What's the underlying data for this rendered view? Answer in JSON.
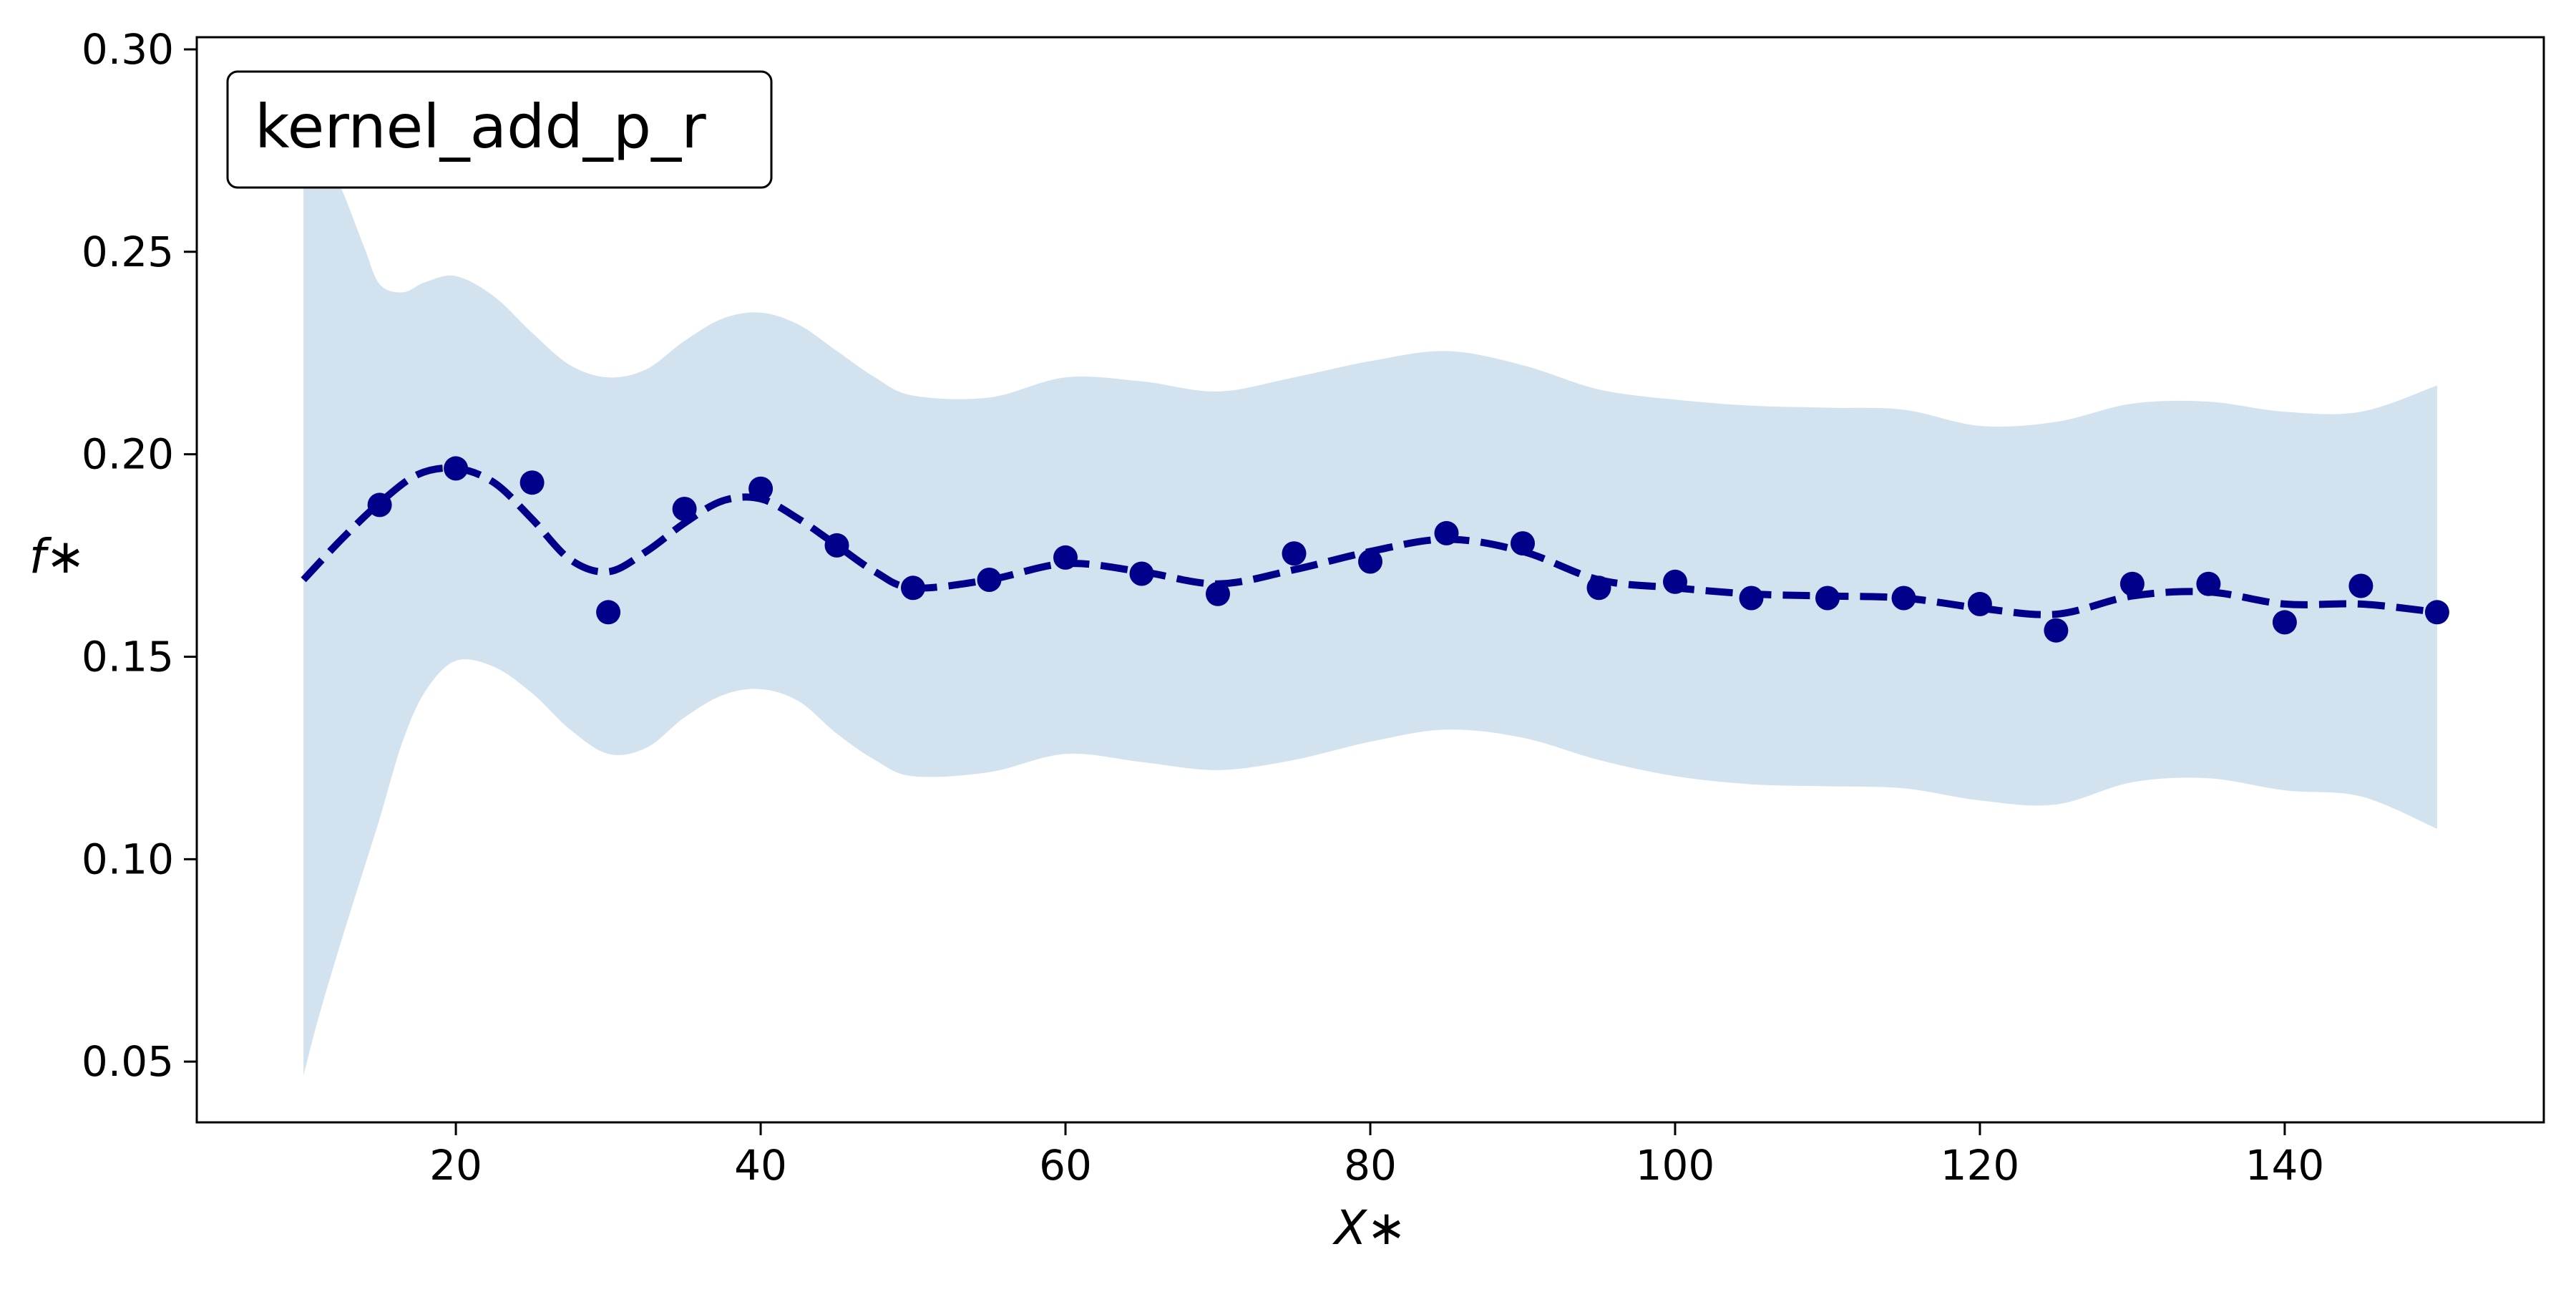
{
  "chart_data": {
    "type": "line",
    "title": "",
    "legend": {
      "label": "kernel_add_p_r",
      "placement": "top-left"
    },
    "xlabel": "X∗",
    "ylabel": "f∗",
    "xlim": [
      3,
      157
    ],
    "ylim": [
      0.035,
      0.303
    ],
    "xticks": [
      20,
      40,
      60,
      80,
      100,
      120,
      140
    ],
    "xtick_labels": [
      "20",
      "40",
      "60",
      "80",
      "100",
      "120",
      "140"
    ],
    "yticks": [
      0.05,
      0.1,
      0.15,
      0.2,
      0.25,
      0.3
    ],
    "ytick_labels": [
      "0.05",
      "0.10",
      "0.15",
      "0.20",
      "0.25",
      "0.30"
    ],
    "grid": false,
    "colors": {
      "points": "#00008b",
      "mean_line": "#00008b",
      "band": "#d2e3ef"
    },
    "points": {
      "x": [
        15,
        20,
        25,
        30,
        35,
        40,
        45,
        50,
        55,
        60,
        65,
        70,
        75,
        80,
        85,
        90,
        95,
        100,
        105,
        110,
        115,
        120,
        125,
        130,
        135,
        140,
        145,
        150
      ],
      "y": [
        0.1875,
        0.1965,
        0.193,
        0.161,
        0.1865,
        0.1915,
        0.1775,
        0.167,
        0.169,
        0.1745,
        0.1705,
        0.1655,
        0.1755,
        0.1735,
        0.1805,
        0.178,
        0.167,
        0.1685,
        0.1645,
        0.1645,
        0.1645,
        0.163,
        0.1565,
        0.168,
        0.168,
        0.1585,
        0.1675,
        0.161
      ]
    },
    "mean": {
      "x": [
        10,
        12.5,
        15,
        17.5,
        20,
        22.5,
        25,
        27.5,
        30,
        32.5,
        35,
        37.5,
        40,
        42.5,
        45,
        47.5,
        50,
        55,
        60,
        65,
        70,
        75,
        80,
        85,
        90,
        95,
        100,
        105,
        110,
        115,
        120,
        125,
        130,
        135,
        140,
        145,
        150
      ],
      "y": [
        0.169,
        0.179,
        0.188,
        0.195,
        0.1965,
        0.193,
        0.184,
        0.174,
        0.171,
        0.176,
        0.183,
        0.1885,
        0.189,
        0.184,
        0.1775,
        0.171,
        0.167,
        0.169,
        0.173,
        0.171,
        0.168,
        0.1715,
        0.176,
        0.179,
        0.176,
        0.169,
        0.167,
        0.1655,
        0.165,
        0.1645,
        0.162,
        0.1605,
        0.165,
        0.166,
        0.163,
        0.163,
        0.161
      ]
    },
    "band": {
      "x": [
        10,
        11,
        12.5,
        14,
        15,
        16.5,
        18,
        20,
        22.5,
        25,
        27.5,
        30,
        32.5,
        35,
        37.5,
        40,
        42.5,
        45,
        47.5,
        50,
        55,
        60,
        65,
        70,
        75,
        80,
        85,
        90,
        95,
        100,
        105,
        110,
        115,
        120,
        125,
        130,
        135,
        140,
        145,
        150
      ],
      "upper": [
        0.2785,
        0.277,
        0.2655,
        0.251,
        0.242,
        0.24,
        0.2425,
        0.244,
        0.239,
        0.23,
        0.222,
        0.219,
        0.221,
        0.228,
        0.2335,
        0.235,
        0.232,
        0.2255,
        0.219,
        0.2145,
        0.214,
        0.219,
        0.218,
        0.2155,
        0.219,
        0.223,
        0.2255,
        0.222,
        0.216,
        0.2135,
        0.212,
        0.2115,
        0.211,
        0.207,
        0.208,
        0.2125,
        0.213,
        0.2105,
        0.2105,
        0.217
      ],
      "lower": [
        0.0465,
        0.061,
        0.08,
        0.098,
        0.11,
        0.129,
        0.1415,
        0.149,
        0.1475,
        0.141,
        0.132,
        0.126,
        0.1275,
        0.135,
        0.1405,
        0.142,
        0.139,
        0.131,
        0.1245,
        0.1205,
        0.1215,
        0.126,
        0.124,
        0.122,
        0.1245,
        0.129,
        0.132,
        0.13,
        0.1245,
        0.1205,
        0.1185,
        0.118,
        0.1175,
        0.1145,
        0.1135,
        0.119,
        0.12,
        0.117,
        0.1155,
        0.1075
      ]
    }
  }
}
